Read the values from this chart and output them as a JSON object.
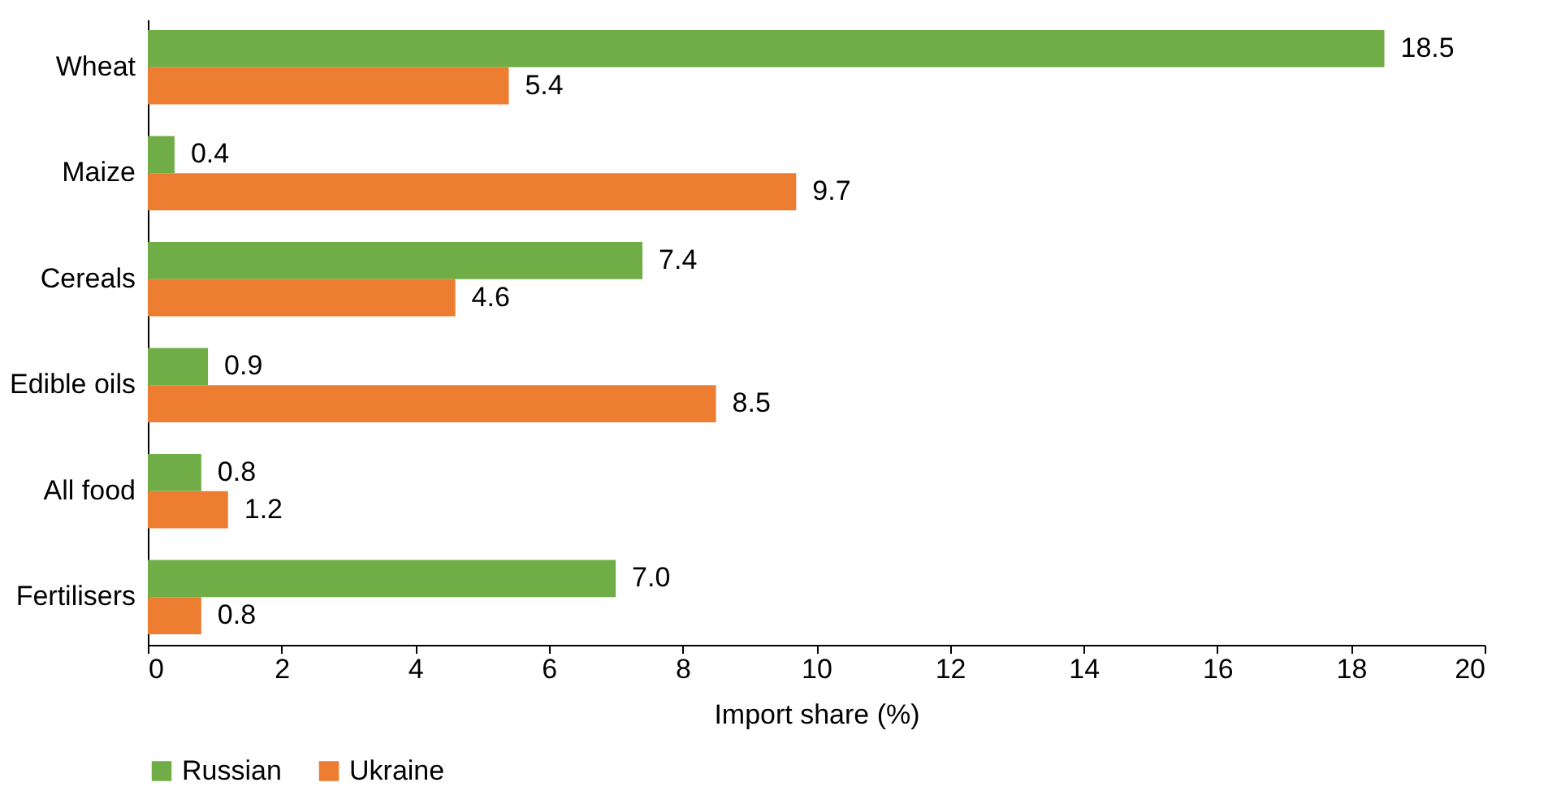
{
  "chart_data": {
    "type": "bar",
    "orientation": "horizontal",
    "categories": [
      "Wheat",
      "Maize",
      "Cereals",
      "Edible oils",
      "All food",
      "Fertilisers"
    ],
    "series": [
      {
        "name": "Russian",
        "color": "#70ad47",
        "values": [
          18.5,
          0.4,
          7.4,
          0.9,
          0.8,
          7.0
        ],
        "value_labels": [
          "18.5",
          "0.4",
          "7.4",
          "0.9",
          "0.8",
          "7.0"
        ]
      },
      {
        "name": "Ukraine",
        "color": "#ed7d31",
        "values": [
          5.4,
          9.7,
          4.6,
          8.5,
          1.2,
          0.8
        ],
        "value_labels": [
          "5.4",
          "9.7",
          "4.6",
          "8.5",
          "1.2",
          "0.8"
        ]
      }
    ],
    "xlabel": "Import share (%)",
    "xlim": [
      0,
      20
    ],
    "xticks": [
      0,
      2,
      4,
      6,
      8,
      10,
      12,
      14,
      16,
      18,
      20
    ],
    "grid": false,
    "legend": "bottom"
  }
}
